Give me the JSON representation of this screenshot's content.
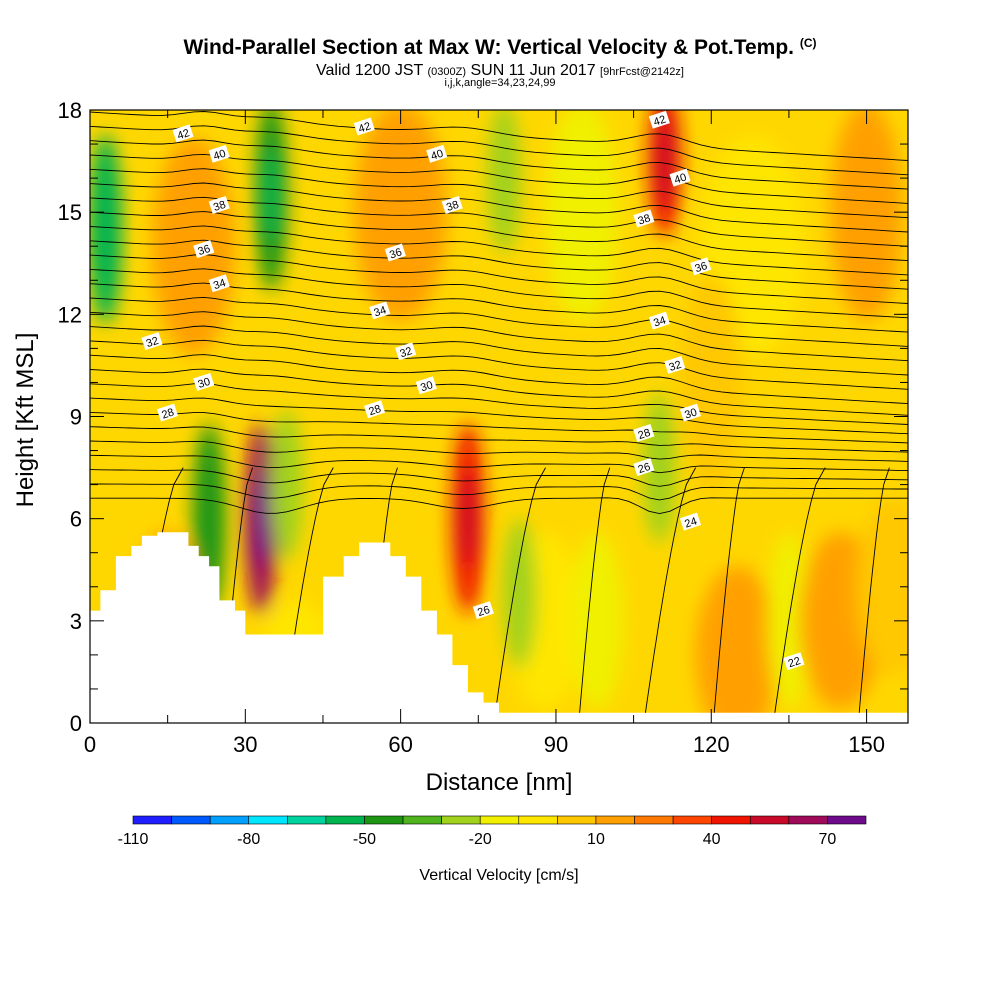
{
  "header": {
    "title": "Wind-Parallel Section at Max W: Vertical Velocity & Pot.Temp.",
    "copyright": "(C)",
    "valid_prefix": "Valid 1200 JST",
    "valid_utc": "(0300Z)",
    "valid_date": "SUN 11 Jun 2017",
    "forecast": "[9hrFcst@2142z]",
    "indices": "i,j,k,angle=34,23,24,99"
  },
  "chart_data": {
    "type": "heatmap",
    "xlabel": "Distance [nm]",
    "ylabel": "Height [Kft MSL]",
    "xlim": [
      0,
      158
    ],
    "ylim": [
      0,
      18
    ],
    "x_ticks": [
      0,
      30,
      60,
      90,
      120,
      150
    ],
    "y_ticks": [
      0,
      3,
      6,
      9,
      12,
      15,
      18
    ],
    "terrain_profile": {
      "x": [
        0,
        2,
        2,
        5,
        5,
        8,
        8,
        10,
        10,
        13,
        13,
        19,
        19,
        21,
        21,
        23,
        23,
        25,
        25,
        28,
        28,
        30,
        30,
        38,
        38,
        45,
        45,
        49,
        49,
        52,
        52,
        58,
        58,
        61,
        61,
        64,
        64,
        67,
        67,
        70,
        70,
        73,
        73,
        76,
        76,
        79,
        79,
        82,
        82,
        158
      ],
      "height": [
        3.3,
        3.3,
        3.9,
        3.9,
        4.9,
        4.9,
        5.2,
        5.2,
        5.5,
        5.5,
        5.6,
        5.6,
        5.2,
        5.2,
        4.9,
        4.9,
        4.6,
        4.6,
        3.6,
        3.6,
        3.3,
        3.3,
        2.6,
        2.6,
        2.6,
        2.6,
        4.3,
        4.3,
        4.9,
        4.9,
        5.3,
        5.3,
        4.9,
        4.9,
        4.3,
        4.3,
        3.3,
        3.3,
        2.6,
        2.6,
        1.7,
        1.7,
        0.9,
        0.9,
        0.6,
        0.6,
        0.3,
        0.3,
        0.3,
        0.3
      ]
    },
    "colorbar": {
      "label": "Vertical Velocity [cm/s]",
      "tick_labels": [
        "-110",
        "-80",
        "-50",
        "-20",
        "10",
        "40",
        "70"
      ],
      "tick_values": [
        -110,
        -80,
        -50,
        -20,
        10,
        40,
        70
      ],
      "bins": [
        {
          "lo": -110,
          "hi": -100,
          "color": "#1e1eff"
        },
        {
          "lo": -100,
          "hi": -90,
          "color": "#005aff"
        },
        {
          "lo": -90,
          "hi": -80,
          "color": "#00a0ff"
        },
        {
          "lo": -80,
          "hi": -70,
          "color": "#00e6ff"
        },
        {
          "lo": -70,
          "hi": -60,
          "color": "#00d2a0"
        },
        {
          "lo": -60,
          "hi": -50,
          "color": "#00b450"
        },
        {
          "lo": -50,
          "hi": -40,
          "color": "#1e9614"
        },
        {
          "lo": -40,
          "hi": -30,
          "color": "#50b41e"
        },
        {
          "lo": -30,
          "hi": -20,
          "color": "#a0d21e"
        },
        {
          "lo": -20,
          "hi": -10,
          "color": "#f0f000"
        },
        {
          "lo": -10,
          "hi": 0,
          "color": "#ffe600"
        },
        {
          "lo": 0,
          "hi": 10,
          "color": "#ffc800"
        },
        {
          "lo": 10,
          "hi": 20,
          "color": "#ffa000"
        },
        {
          "lo": 20,
          "hi": 30,
          "color": "#ff7800"
        },
        {
          "lo": 30,
          "hi": 40,
          "color": "#ff4600"
        },
        {
          "lo": 40,
          "hi": 50,
          "color": "#f01400"
        },
        {
          "lo": 50,
          "hi": 60,
          "color": "#c80a28"
        },
        {
          "lo": 60,
          "hi": 70,
          "color": "#a00a5a"
        },
        {
          "lo": 70,
          "hi": 80,
          "color": "#6e0a8c"
        }
      ]
    },
    "velocity_features": [
      {
        "x": 3,
        "height": 14.5,
        "value": -55
      },
      {
        "x": 23,
        "height": 6,
        "value": -45
      },
      {
        "x": 33,
        "height": 6,
        "value": 60
      },
      {
        "x": 35,
        "height": 15.5,
        "value": -50
      },
      {
        "x": 38,
        "height": 7,
        "value": -25
      },
      {
        "x": 73,
        "height": 6,
        "value": 45
      },
      {
        "x": 80,
        "height": 16,
        "value": -25
      },
      {
        "x": 83,
        "height": 3.8,
        "value": -30
      },
      {
        "x": 110,
        "height": 7.5,
        "value": -30
      },
      {
        "x": 111,
        "height": 16.5,
        "value": 40
      }
    ],
    "contours": {
      "name": "Potential temperature",
      "labels": [
        {
          "text": "42",
          "x": 18,
          "height": 17.3
        },
        {
          "text": "42",
          "x": 53,
          "height": 17.5
        },
        {
          "text": "42",
          "x": 110,
          "height": 17.7
        },
        {
          "text": "40",
          "x": 25,
          "height": 16.7
        },
        {
          "text": "40",
          "x": 67,
          "height": 16.7
        },
        {
          "text": "40",
          "x": 114,
          "height": 16
        },
        {
          "text": "38",
          "x": 25,
          "height": 15.2
        },
        {
          "text": "38",
          "x": 70,
          "height": 15.2
        },
        {
          "text": "38",
          "x": 107,
          "height": 14.8
        },
        {
          "text": "36",
          "x": 22,
          "height": 13.9
        },
        {
          "text": "36",
          "x": 59,
          "height": 13.8
        },
        {
          "text": "36",
          "x": 118,
          "height": 13.4
        },
        {
          "text": "34",
          "x": 25,
          "height": 12.9
        },
        {
          "text": "34",
          "x": 56,
          "height": 12.1
        },
        {
          "text": "34",
          "x": 110,
          "height": 11.8
        },
        {
          "text": "32",
          "x": 12,
          "height": 11.2
        },
        {
          "text": "32",
          "x": 61,
          "height": 10.9
        },
        {
          "text": "32",
          "x": 113,
          "height": 10.5
        },
        {
          "text": "30",
          "x": 22,
          "height": 10
        },
        {
          "text": "30",
          "x": 65,
          "height": 9.9
        },
        {
          "text": "30",
          "x": 116,
          "height": 9.1
        },
        {
          "text": "28",
          "x": 15,
          "height": 9.1
        },
        {
          "text": "28",
          "x": 55,
          "height": 9.2
        },
        {
          "text": "28",
          "x": 107,
          "height": 8.5
        },
        {
          "text": "26",
          "x": 107,
          "height": 7.5
        },
        {
          "text": "26",
          "x": 76,
          "height": 3.3
        },
        {
          "text": "24",
          "x": 116,
          "height": 5.9
        },
        {
          "text": "22",
          "x": 136,
          "height": 1.8
        }
      ]
    }
  }
}
